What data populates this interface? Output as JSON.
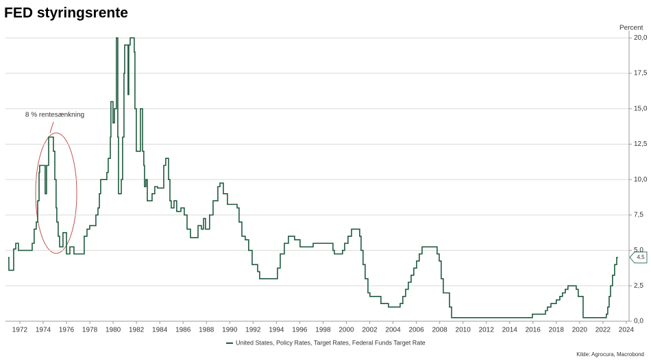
{
  "chart_data": {
    "type": "line",
    "title": "FED styringsrente",
    "y_axis_label": "Percent",
    "source": "Kilde: Agrocura, Macrobond",
    "annotation": "8 % rentesænkning",
    "step": "post",
    "grid": true,
    "xlim": [
      1970.77,
      2024.24
    ],
    "ylim": [
      0,
      20.5
    ],
    "xticks": [
      1972,
      1974,
      1976,
      1978,
      1980,
      1982,
      1984,
      1986,
      1988,
      1990,
      1992,
      1994,
      1996,
      1998,
      2000,
      2002,
      2004,
      2006,
      2008,
      2010,
      2012,
      2014,
      2016,
      2018,
      2020,
      2022,
      2024
    ],
    "yticks": [
      {
        "value": 0,
        "label": "0,0"
      },
      {
        "value": 2.5,
        "label": "2,5"
      },
      {
        "value": 5,
        "label": "5,0"
      },
      {
        "value": 7.5,
        "label": "7,5"
      },
      {
        "value": 10,
        "label": "10,0"
      },
      {
        "value": 12.5,
        "label": "12,5"
      },
      {
        "value": 15,
        "label": "15,0"
      },
      {
        "value": 17.5,
        "label": "17,5"
      },
      {
        "value": 20,
        "label": "20,0"
      }
    ],
    "end_label": {
      "value": 4.5,
      "label": "4,5"
    },
    "x": [
      1971.0,
      1971.06,
      1971.47,
      1971.65,
      1971.88,
      1973.06,
      1973.23,
      1973.41,
      1973.53,
      1973.65,
      1973.7,
      1974.17,
      1974.29,
      1974.47,
      1974.88,
      1975.0,
      1975.11,
      1975.17,
      1975.29,
      1975.41,
      1975.7,
      1976.0,
      1976.29,
      1976.64,
      1977.52,
      1977.76,
      1977.99,
      1978.52,
      1978.7,
      1978.82,
      1978.93,
      1979.46,
      1979.58,
      1979.76,
      1979.81,
      1979.99,
      1980.11,
      1980.28,
      1980.4,
      1980.46,
      1980.7,
      1980.81,
      1980.93,
      1980.99,
      1981.28,
      1981.34,
      1981.46,
      1981.81,
      1981.87,
      1981.99,
      1982.34,
      1982.52,
      1982.63,
      1982.69,
      1982.81,
      1982.93,
      1983.34,
      1983.57,
      1983.81,
      1984.34,
      1984.51,
      1984.75,
      1984.87,
      1984.98,
      1985.22,
      1985.45,
      1985.81,
      1986.1,
      1986.34,
      1986.63,
      1987.28,
      1987.57,
      1987.75,
      1987.92,
      1988.27,
      1988.57,
      1988.98,
      1989.16,
      1989.45,
      1989.8,
      1990.63,
      1990.8,
      1991.04,
      1991.33,
      1991.62,
      1991.92,
      1992.39,
      1992.56,
      1994.09,
      1994.33,
      1994.68,
      1995.03,
      1995.56,
      1996.03,
      1997.15,
      1998.85,
      1998.97,
      1999.67,
      1999.85,
      2000.14,
      2000.44,
      2001.14,
      2001.26,
      2001.43,
      2001.61,
      2001.85,
      2002.02,
      2002.96,
      2003.61,
      2004.61,
      2004.84,
      2005.08,
      2005.31,
      2005.55,
      2005.78,
      2006.02,
      2006.25,
      2006.49,
      2007.78,
      2007.96,
      2008.13,
      2008.31,
      2008.84,
      2009.02,
      2015.95,
      2017.07,
      2017.24,
      2017.54,
      2018.0,
      2018.3,
      2018.53,
      2018.77,
      2019.0,
      2019.71,
      2019.88,
      2020.3,
      2022.29,
      2022.41,
      2022.53,
      2022.65,
      2022.82,
      2023.0,
      2023.18,
      2023.29
    ],
    "series": [
      {
        "name": "United States, Policy Rates, Target Rates, Federal Funds Target Rate",
        "color": "#1e5a3e",
        "values": [
          4.5,
          3.6,
          5.1,
          5.5,
          5.0,
          5.5,
          6.5,
          7.0,
          8.5,
          10.5,
          11.0,
          9.0,
          11.0,
          13.0,
          12.0,
          10.0,
          8.0,
          7.0,
          6.0,
          5.25,
          6.25,
          4.75,
          5.25,
          4.75,
          6.0,
          6.5,
          6.75,
          7.5,
          8.0,
          9.0,
          10.0,
          10.5,
          11.5,
          13.0,
          15.5,
          14.0,
          15.0,
          20.0,
          13.0,
          9.0,
          10.0,
          13.0,
          17.5,
          19.5,
          16.0,
          19.5,
          20.0,
          19.0,
          15.0,
          12.0,
          15.0,
          12.0,
          11.0,
          9.5,
          10.0,
          8.5,
          9.0,
          9.5,
          9.4,
          11.0,
          11.5,
          10.0,
          8.5,
          8.0,
          8.5,
          7.75,
          8.0,
          7.5,
          6.5,
          5.9,
          6.75,
          6.5,
          7.25,
          6.5,
          7.5,
          8.5,
          9.5,
          9.75,
          9.0,
          8.25,
          8.0,
          7.0,
          6.0,
          5.75,
          5.0,
          4.0,
          3.5,
          3.0,
          3.75,
          4.75,
          5.5,
          6.0,
          5.75,
          5.25,
          5.5,
          5.0,
          4.75,
          5.0,
          5.5,
          6.0,
          6.5,
          6.0,
          5.0,
          4.0,
          3.0,
          2.0,
          1.75,
          1.25,
          1.0,
          1.25,
          1.75,
          2.25,
          2.75,
          3.25,
          3.75,
          4.25,
          4.75,
          5.25,
          4.75,
          4.25,
          3.0,
          2.0,
          1.0,
          0.25,
          0.5,
          0.75,
          1.0,
          1.25,
          1.5,
          1.75,
          2.0,
          2.25,
          2.5,
          2.25,
          1.75,
          0.25,
          0.5,
          1.0,
          1.75,
          2.5,
          3.25,
          4.0,
          4.5,
          4.5
        ]
      }
    ]
  }
}
